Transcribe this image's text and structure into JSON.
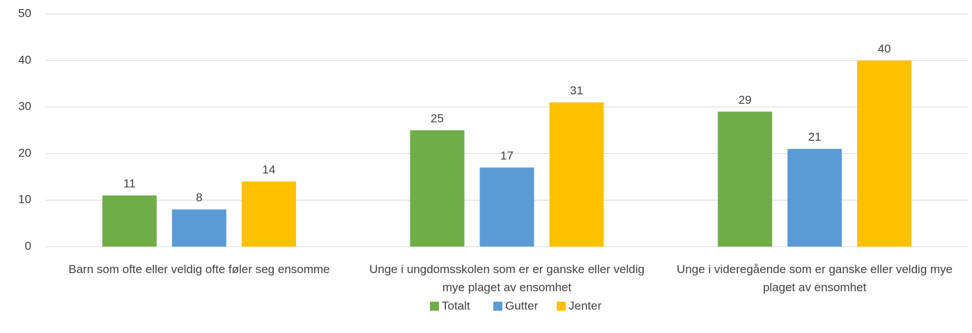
{
  "chart_data": {
    "type": "bar",
    "categories": [
      "Barn som ofte eller veldig ofte føler seg ensomme",
      "Unge i ungdomsskolen som er er ganske eller veldig mye plaget av ensomhet",
      "Unge i videregående som er ganske eller veldig mye plaget av ensomhet"
    ],
    "series": [
      {
        "name": "Totalt",
        "color": "#70ad47",
        "values": [
          11,
          25,
          29
        ]
      },
      {
        "name": "Gutter",
        "color": "#5b9bd5",
        "values": [
          8,
          17,
          21
        ]
      },
      {
        "name": "Jenter",
        "color": "#ffc000",
        "values": [
          14,
          31,
          40
        ]
      }
    ],
    "ylim": [
      0,
      50
    ],
    "yticks": [
      0,
      10,
      20,
      30,
      40,
      50
    ],
    "grid": true,
    "legend": "bottom"
  }
}
